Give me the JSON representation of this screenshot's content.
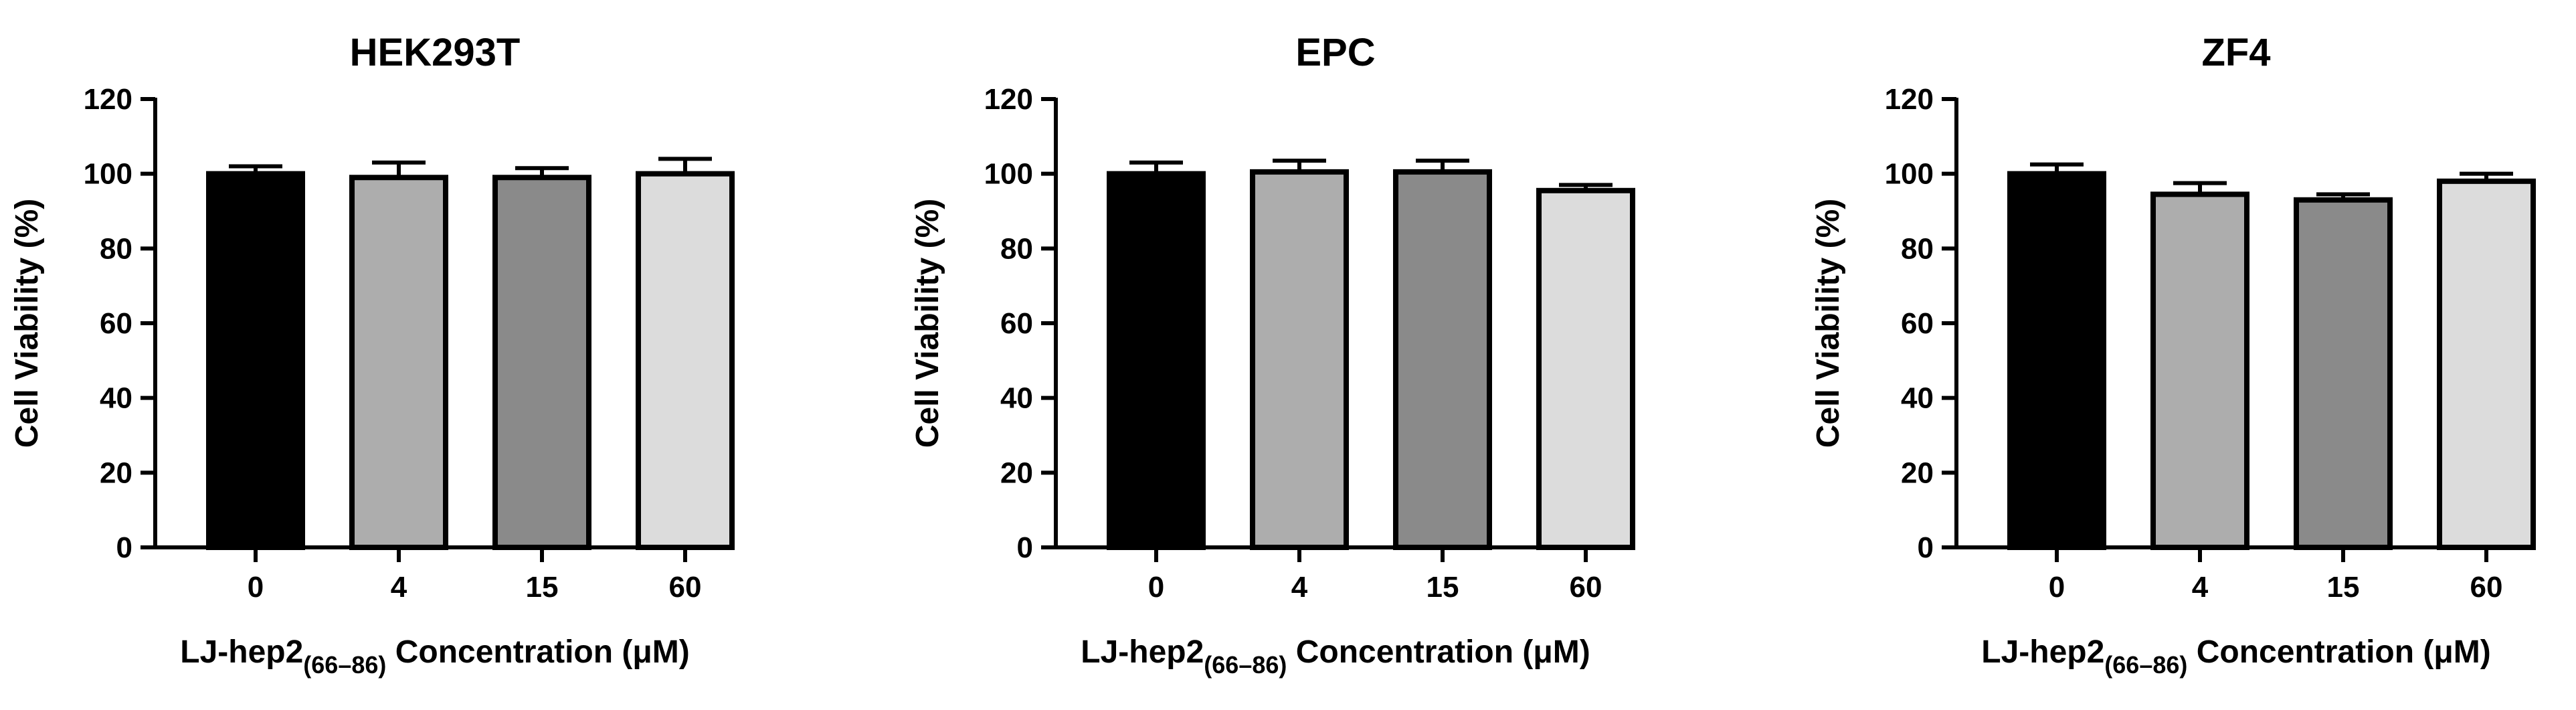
{
  "chart_data": [
    {
      "type": "bar",
      "title": "HEK293T",
      "categories": [
        "0",
        "4",
        "15",
        "60"
      ],
      "values": [
        100,
        99,
        99,
        100
      ],
      "errors": [
        2,
        4,
        2.5,
        4
      ],
      "ylabel": "Cell Viability (%)",
      "xlabel": {
        "prefix": "LJ-hep2",
        "subscript": "(66–86)",
        "suffix": " Concentration (μM)"
      },
      "ylim": [
        0,
        120
      ],
      "yticks": [
        "0",
        "20",
        "40",
        "60",
        "80",
        "100",
        "120"
      ],
      "bar_colors": [
        "#000000",
        "#adadad",
        "#8a8a8a",
        "#dcdcdc"
      ],
      "grid": false
    },
    {
      "type": "bar",
      "title": "EPC",
      "categories": [
        "0",
        "4",
        "15",
        "60"
      ],
      "values": [
        100,
        100.5,
        100.5,
        95.5
      ],
      "errors": [
        3,
        3,
        3,
        1.5
      ],
      "ylabel": "Cell Viability (%)",
      "xlabel": {
        "prefix": "LJ-hep2",
        "subscript": "(66–86)",
        "suffix": " Concentration (μM)"
      },
      "ylim": [
        0,
        120
      ],
      "yticks": [
        "0",
        "20",
        "40",
        "60",
        "80",
        "100",
        "120"
      ],
      "bar_colors": [
        "#000000",
        "#adadad",
        "#8a8a8a",
        "#dcdcdc"
      ],
      "grid": false
    },
    {
      "type": "bar",
      "title": "ZF4",
      "categories": [
        "0",
        "4",
        "15",
        "60"
      ],
      "values": [
        100,
        94.5,
        93,
        98
      ],
      "errors": [
        2.5,
        3,
        1.5,
        2
      ],
      "ylabel": "Cell Viability (%)",
      "xlabel": {
        "prefix": "LJ-hep2",
        "subscript": "(66–86)",
        "suffix": " Concentration (μM)"
      },
      "ylim": [
        0,
        120
      ],
      "yticks": [
        "0",
        "20",
        "40",
        "60",
        "80",
        "100",
        "120"
      ],
      "bar_colors": [
        "#000000",
        "#adadad",
        "#8a8a8a",
        "#dcdcdc"
      ],
      "grid": false
    }
  ]
}
